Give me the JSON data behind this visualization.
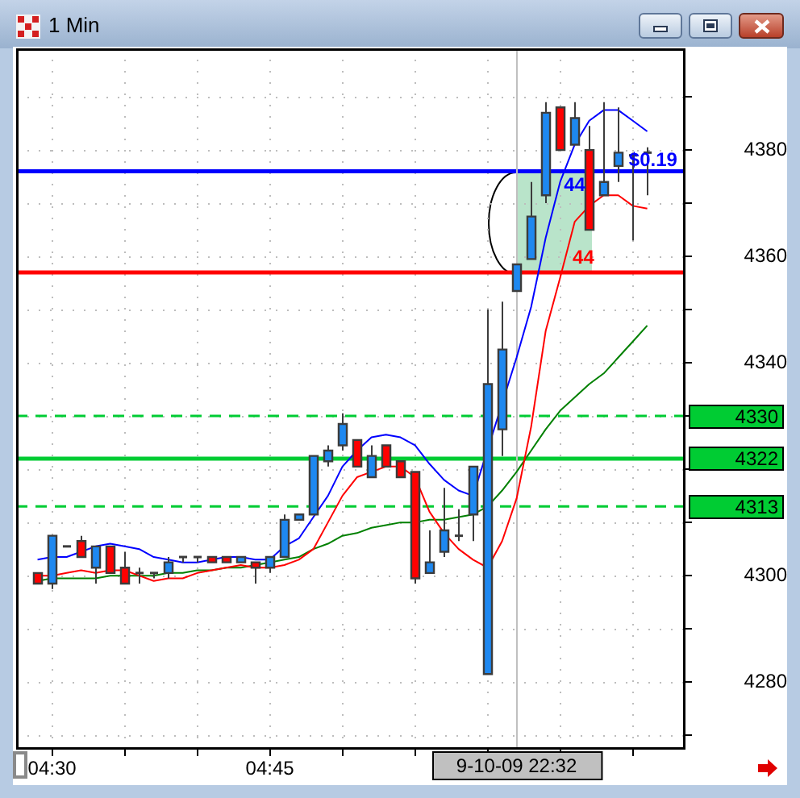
{
  "chart_data": {
    "type": "candlestick",
    "title": "1 Min",
    "x": [
      4.4833,
      4.5,
      4.5167,
      4.5333,
      4.55,
      4.5667,
      4.5833,
      4.6,
      4.6167,
      4.6333,
      4.65,
      4.6667,
      4.6833,
      4.7,
      4.7167,
      4.7333,
      4.75,
      4.7667,
      4.7833,
      4.8,
      4.8167,
      4.8333,
      4.85,
      4.8667,
      4.8833,
      4.9,
      4.9167,
      4.9333,
      4.95,
      4.9667,
      4.9833,
      5,
      5.0167,
      5.0333,
      5.05,
      5.0667,
      5.0833,
      5.1,
      5.1167,
      5.1333,
      5.15,
      5.1667,
      5.1833
    ],
    "ohlc": [
      [
        4300.5,
        4300.5,
        4298.5,
        4298.5
      ],
      [
        4298.5,
        4307.5,
        4297.5,
        4307.5
      ],
      [
        4305.5,
        4305.5,
        4305.5,
        4305.5
      ],
      [
        4306.5,
        4307.5,
        4303.5,
        4303.5
      ],
      [
        4301.5,
        4305.5,
        4298.5,
        4305.5
      ],
      [
        4305.5,
        4305.5,
        4300.5,
        4300.5
      ],
      [
        4301.5,
        4304.5,
        4298.5,
        4298.5
      ],
      [
        4300.5,
        4301.5,
        4298.5,
        4300.5
      ],
      [
        4300.5,
        4300.5,
        4299.5,
        4300.5
      ],
      [
        4300.5,
        4303.5,
        4299.5,
        4302.5
      ],
      [
        4303.5,
        4303.5,
        4302.5,
        4303.5
      ],
      [
        4303.5,
        4303.5,
        4302.5,
        4303.5
      ],
      [
        4303.5,
        4303.5,
        4302.5,
        4302.5
      ],
      [
        4303.5,
        4303.5,
        4302.5,
        4302.5
      ],
      [
        4302.5,
        4303.5,
        4302.5,
        4303.5
      ],
      [
        4302.5,
        4302.5,
        4298.5,
        4301.5
      ],
      [
        4301.5,
        4303.5,
        4300.5,
        4303.5
      ],
      [
        4303.5,
        4311.5,
        4303.5,
        4310.5
      ],
      [
        4310.5,
        4311.5,
        4310.5,
        4311.5
      ],
      [
        4311.5,
        4322.5,
        4311.5,
        4322.5
      ],
      [
        4321.5,
        4324.5,
        4320.5,
        4323.5
      ],
      [
        4324.5,
        4330.5,
        4323.5,
        4328.5
      ],
      [
        4325.5,
        4325.5,
        4320.5,
        4320.5
      ],
      [
        4318.5,
        4324.5,
        4318.5,
        4322.5
      ],
      [
        4324.5,
        4324.5,
        4320.5,
        4320.5
      ],
      [
        4321.5,
        4321.5,
        4318.5,
        4318.5
      ],
      [
        4319.5,
        4319.5,
        4298.5,
        4299.5
      ],
      [
        4300.5,
        4308.5,
        4300.5,
        4302.5
      ],
      [
        4304.5,
        4316.5,
        4303.5,
        4308.5
      ],
      [
        4307.5,
        4312.5,
        4306.5,
        4307.5
      ],
      [
        4311.5,
        4320.5,
        4306.5,
        4320.5
      ],
      [
        4281.5,
        4350,
        4281.5,
        4336
      ],
      [
        4327.5,
        4351.5,
        4322.5,
        4342.5
      ],
      [
        4353.5,
        4358.5,
        4353.5,
        4358.5
      ],
      [
        4359.5,
        4374,
        4359.5,
        4367.5
      ],
      [
        4371.5,
        4389,
        4370,
        4387
      ],
      [
        4388,
        4388,
        4380,
        4380
      ],
      [
        4381,
        4389,
        4381,
        4386
      ],
      [
        4380,
        4384.5,
        4365,
        4365
      ],
      [
        4371.5,
        4389,
        4371.5,
        4374
      ],
      [
        4377,
        4388,
        4374,
        4379.5
      ],
      [
        4379,
        4379.5,
        4363,
        4379
      ],
      [
        4379.5,
        4380.5,
        4371.5,
        4379.5
      ]
    ],
    "colors": [
      "#ff0000",
      "#1e88f0",
      "#3c3c3c",
      "#ff0000",
      "#1e88f0",
      "#ff0000",
      "#ff0000",
      "#3c3c3c",
      "#3c3c3c",
      "#1e88f0",
      "#3c3c3c",
      "#3c3c3c",
      "#ff0000",
      "#ff0000",
      "#1e88f0",
      "#ff0000",
      "#1e88f0",
      "#1e88f0",
      "#1e88f0",
      "#1e88f0",
      "#1e88f0",
      "#1e88f0",
      "#ff0000",
      "#1e88f0",
      "#ff0000",
      "#ff0000",
      "#ff0000",
      "#1e88f0",
      "#1e88f0",
      "#3c3c3c",
      "#1e88f0",
      "#1e88f0",
      "#1e88f0",
      "#1e88f0",
      "#1e88f0",
      "#1e88f0",
      "#ff0000",
      "#1e88f0",
      "#ff0000",
      "#1e88f0",
      "#1e88f0",
      "#3c3c3c",
      "#3c3c3c"
    ],
    "series": [
      {
        "type": "line",
        "color": "#0000ff",
        "values": [
          4303,
          4303.5,
          4303.5,
          4304.5,
          4305.5,
          4306,
          4305.5,
          4305,
          4303.5,
          4303,
          4302.5,
          4302.5,
          4303,
          4303.5,
          4303.5,
          4303,
          4303,
          4305.5,
          4307,
          4311,
          4315,
          4320.5,
          4323.5,
          4326,
          4326.5,
          4326,
          4324.5,
          4321,
          4318,
          4316,
          4315,
          null,
          null,
          4341,
          4350.5,
          4363.5,
          4374,
          4381,
          4385.5,
          4387.5,
          4387.5,
          4385.5,
          4383.5
        ]
      },
      {
        "type": "line",
        "color": "#ff0000",
        "values": [
          4300,
          4300,
          4300.5,
          4301,
          4300.5,
          4301,
          4301,
          4300,
          4299,
          4299.5,
          4299.5,
          4300.5,
          4301,
          4301.5,
          4302,
          4301.5,
          4301.5,
          4302,
          4303,
          4305,
          4310,
          4315,
          4318.5,
          4319.5,
          4320.5,
          4320.5,
          4318.5,
          4312,
          4308,
          4305,
          4303,
          4301.5,
          4306.5,
          4314.5,
          4328,
          4346,
          4356,
          4366.5,
          4369.5,
          4371.5,
          4371.5,
          4369.5,
          4369
        ]
      },
      {
        "type": "line",
        "color": "#008000",
        "values": [
          4299,
          4299.5,
          4299.5,
          4299.5,
          4299.5,
          4300,
          4300,
          4300,
          4300,
          4300.5,
          4300.5,
          4301,
          4301,
          4301.5,
          4301.5,
          4302,
          4302.5,
          4303,
          4303.5,
          4305,
          4306,
          4307.5,
          4308,
          4309,
          4309.5,
          4310,
          4310,
          4310.5,
          4310.5,
          4311,
          4311.5,
          4313,
          4316,
          4319.5,
          4323.5,
          4327.5,
          4331,
          4333.5,
          4336,
          4338,
          4341,
          4344,
          4347
        ]
      }
    ],
    "marker": "none",
    "xlim": [
      4.4587,
      5.2272
    ],
    "xticks": [
      {
        "value": 4.5,
        "label": "04:30"
      },
      {
        "value": 4.5833,
        "label": null
      },
      {
        "value": 4.6667,
        "label": null
      },
      {
        "value": 4.75,
        "label": "04:45"
      },
      {
        "value": 4.8333,
        "label": null
      },
      {
        "value": 4.9167,
        "label": null
      },
      {
        "value": 5,
        "label": null
      },
      {
        "value": 5.0833,
        "label": null
      },
      {
        "value": 5.1667,
        "label": null
      }
    ],
    "ylim": [
      4267.3,
      4399.1
    ],
    "yticks": [
      {
        "value": 4270,
        "label": null
      },
      4280,
      {
        "value": 4290,
        "label": null
      },
      4300,
      {
        "value": 4310,
        "label": null
      },
      {
        "value": 4320,
        "label": null
      },
      {
        "value": 4330,
        "label": null
      },
      4340,
      {
        "value": 4350,
        "label": null
      },
      4360,
      {
        "value": 4370,
        "label": null
      },
      4380,
      {
        "value": 4390,
        "label": null
      }
    ],
    "grid": true,
    "ref_lines": [
      {
        "axis": "y",
        "value": 4376,
        "color": "#0000ff"
      },
      {
        "axis": "y",
        "value": 4357,
        "color": "#ff0000"
      },
      {
        "axis": "y",
        "value": 4330,
        "label": "4330",
        "color": "#00cc33",
        "line_style": "dashed"
      },
      {
        "axis": "y",
        "value": 4322,
        "label": "4322",
        "color": "#00cc33"
      },
      {
        "axis": "y",
        "value": 4313,
        "label": "4313",
        "color": "#00cc33",
        "line_style": "dashed"
      },
      {
        "axis": "x",
        "value": 5.0333,
        "color": "#c0c0c0"
      }
    ],
    "annotations": [
      {
        "text": "$0.19",
        "x": 5.19,
        "y": 4378
      },
      {
        "text": "44",
        "x": 5.1,
        "y": 4376
      },
      {
        "text": "44",
        "x": 5.11,
        "y": 4357
      },
      "9-10-09 22:32"
    ]
  }
}
